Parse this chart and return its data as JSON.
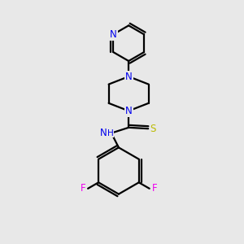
{
  "background_color": "#e8e8e8",
  "atom_colors": {
    "N": "#0000ee",
    "F": "#ee00ee",
    "S": "#bbbb00",
    "C": "#000000",
    "H": "#000000"
  },
  "line_color": "#000000",
  "line_width": 1.6,
  "font_size_atoms": 8.5,
  "figsize": [
    3.0,
    3.0
  ],
  "dpi": 100,
  "xlim": [
    0,
    10
  ],
  "ylim": [
    0,
    11
  ]
}
